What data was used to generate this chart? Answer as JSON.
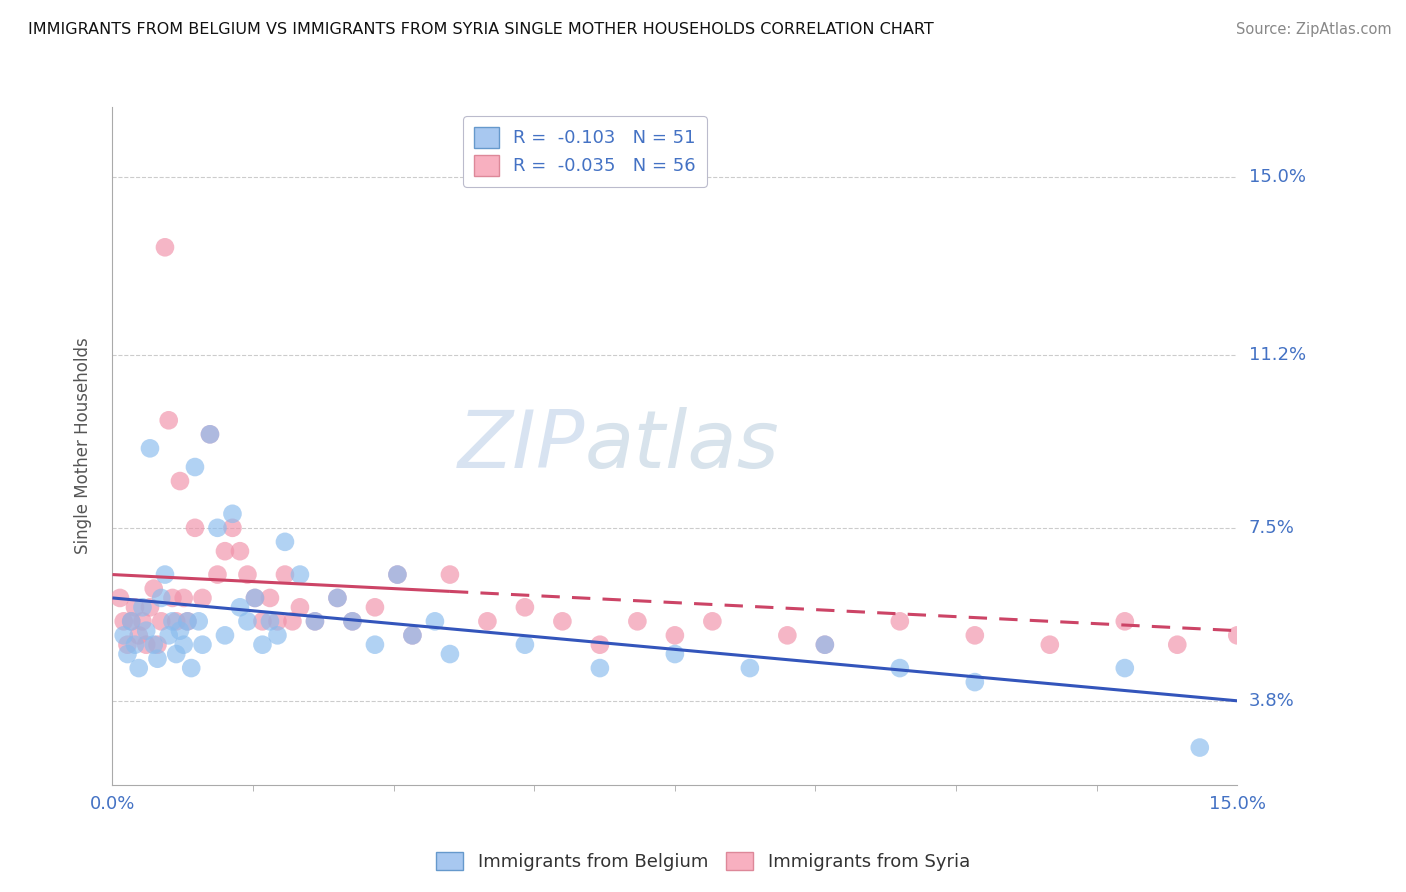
{
  "title": "IMMIGRANTS FROM BELGIUM VS IMMIGRANTS FROM SYRIA SINGLE MOTHER HOUSEHOLDS CORRELATION CHART",
  "source": "Source: ZipAtlas.com",
  "ylabel": "Single Mother Households",
  "y_ticks": [
    3.8,
    7.5,
    11.2,
    15.0
  ],
  "y_tick_labels": [
    "3.8%",
    "7.5%",
    "11.2%",
    "15.0%"
  ],
  "xlim": [
    0,
    15
  ],
  "ylim": [
    2.0,
    16.5
  ],
  "legend_entries": [
    {
      "color": "#a8c8f0",
      "border": "#6699cc",
      "R": "-0.103",
      "N": "51",
      "label": "Immigrants from Belgium"
    },
    {
      "color": "#f8b0c0",
      "border": "#dd8899",
      "R": "-0.035",
      "N": "56",
      "label": "Immigrants from Syria"
    }
  ],
  "watermark_zip": "ZIP",
  "watermark_atlas": "atlas",
  "blue_dot_color": "#88bbee",
  "pink_dot_color": "#f090a8",
  "blue_line_color": "#3355bb",
  "pink_line_color": "#cc4466",
  "blue_line_start": 6.0,
  "blue_line_end": 3.8,
  "pink_line_solid_end_x": 4.5,
  "pink_line_start": 6.5,
  "pink_line_end": 5.3,
  "blue_scatter_x": [
    0.15,
    0.2,
    0.25,
    0.3,
    0.35,
    0.4,
    0.45,
    0.5,
    0.55,
    0.6,
    0.65,
    0.7,
    0.75,
    0.8,
    0.85,
    0.9,
    0.95,
    1.0,
    1.05,
    1.1,
    1.15,
    1.2,
    1.3,
    1.4,
    1.5,
    1.6,
    1.7,
    1.8,
    1.9,
    2.0,
    2.1,
    2.2,
    2.3,
    2.5,
    2.7,
    3.0,
    3.2,
    3.5,
    3.8,
    4.0,
    4.3,
    4.5,
    5.5,
    6.5,
    7.5,
    8.5,
    9.5,
    10.5,
    11.5,
    13.5,
    14.5
  ],
  "blue_scatter_y": [
    5.2,
    4.8,
    5.5,
    5.0,
    4.5,
    5.8,
    5.3,
    9.2,
    5.0,
    4.7,
    6.0,
    6.5,
    5.2,
    5.5,
    4.8,
    5.3,
    5.0,
    5.5,
    4.5,
    8.8,
    5.5,
    5.0,
    9.5,
    7.5,
    5.2,
    7.8,
    5.8,
    5.5,
    6.0,
    5.0,
    5.5,
    5.2,
    7.2,
    6.5,
    5.5,
    6.0,
    5.5,
    5.0,
    6.5,
    5.2,
    5.5,
    4.8,
    5.0,
    4.5,
    4.8,
    4.5,
    5.0,
    4.5,
    4.2,
    4.5,
    2.8
  ],
  "pink_scatter_x": [
    0.1,
    0.15,
    0.2,
    0.25,
    0.3,
    0.35,
    0.4,
    0.45,
    0.5,
    0.55,
    0.6,
    0.65,
    0.7,
    0.75,
    0.8,
    0.85,
    0.9,
    0.95,
    1.0,
    1.1,
    1.2,
    1.3,
    1.4,
    1.5,
    1.6,
    1.7,
    1.8,
    1.9,
    2.0,
    2.1,
    2.2,
    2.3,
    2.4,
    2.5,
    2.7,
    3.0,
    3.2,
    3.5,
    3.8,
    4.0,
    4.5,
    5.0,
    5.5,
    6.0,
    6.5,
    7.0,
    7.5,
    8.0,
    9.0,
    9.5,
    10.5,
    11.5,
    12.5,
    13.5,
    14.2,
    15.0
  ],
  "pink_scatter_y": [
    6.0,
    5.5,
    5.0,
    5.5,
    5.8,
    5.2,
    5.5,
    5.0,
    5.8,
    6.2,
    5.0,
    5.5,
    13.5,
    9.8,
    6.0,
    5.5,
    8.5,
    6.0,
    5.5,
    7.5,
    6.0,
    9.5,
    6.5,
    7.0,
    7.5,
    7.0,
    6.5,
    6.0,
    5.5,
    6.0,
    5.5,
    6.5,
    5.5,
    5.8,
    5.5,
    6.0,
    5.5,
    5.8,
    6.5,
    5.2,
    6.5,
    5.5,
    5.8,
    5.5,
    5.0,
    5.5,
    5.2,
    5.5,
    5.2,
    5.0,
    5.5,
    5.2,
    5.0,
    5.5,
    5.0,
    5.2
  ]
}
